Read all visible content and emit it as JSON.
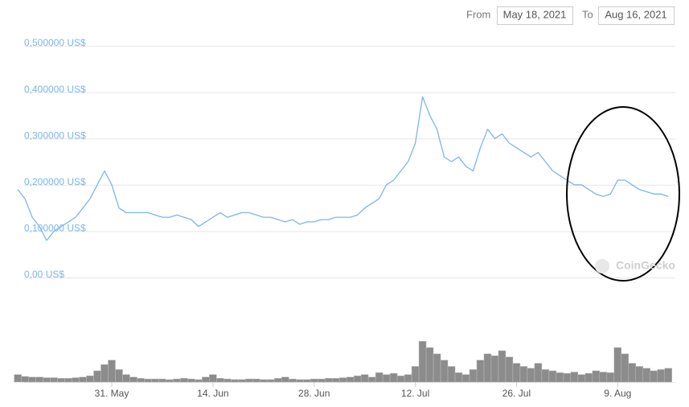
{
  "controls": {
    "from_label": "From",
    "from_date": "May 18, 2021",
    "to_label": "To",
    "to_date": "Aug 16, 2021"
  },
  "watermark": "CoinGecko",
  "chart_data": {
    "type": "line",
    "categories": [
      null,
      null,
      null,
      null,
      null,
      null,
      null,
      null,
      null,
      null,
      null,
      null,
      null,
      "31. May",
      null,
      null,
      null,
      null,
      null,
      null,
      null,
      null,
      null,
      null,
      null,
      null,
      null,
      "14. Jun",
      null,
      null,
      null,
      null,
      null,
      null,
      null,
      null,
      null,
      null,
      null,
      null,
      null,
      "28. Jun",
      null,
      null,
      null,
      null,
      null,
      null,
      null,
      null,
      null,
      null,
      null,
      null,
      null,
      "12. Jul",
      null,
      null,
      null,
      null,
      null,
      null,
      null,
      null,
      null,
      null,
      null,
      null,
      null,
      "26. Jul",
      null,
      null,
      null,
      null,
      null,
      null,
      null,
      null,
      null,
      null,
      null,
      null,
      null,
      "9. Aug",
      null,
      null,
      null,
      null,
      null,
      null,
      null
    ],
    "series": [
      {
        "name": "Price",
        "color": "#7cb5ec",
        "values": [
          0.19,
          0.17,
          0.13,
          0.11,
          0.08,
          0.1,
          0.11,
          0.12,
          0.13,
          0.15,
          0.17,
          0.2,
          0.23,
          0.2,
          0.15,
          0.14,
          0.14,
          0.14,
          0.14,
          0.135,
          0.13,
          0.13,
          0.135,
          0.13,
          0.125,
          0.11,
          0.12,
          0.13,
          0.14,
          0.13,
          0.135,
          0.14,
          0.14,
          0.135,
          0.13,
          0.13,
          0.125,
          0.12,
          0.125,
          0.115,
          0.12,
          0.12,
          0.125,
          0.125,
          0.13,
          0.13,
          0.13,
          0.135,
          0.15,
          0.16,
          0.17,
          0.2,
          0.21,
          0.23,
          0.25,
          0.29,
          0.39,
          0.35,
          0.32,
          0.26,
          0.25,
          0.26,
          0.24,
          0.23,
          0.28,
          0.32,
          0.3,
          0.31,
          0.29,
          0.28,
          0.27,
          0.26,
          0.27,
          0.25,
          0.23,
          0.22,
          0.21,
          0.2,
          0.2,
          0.19,
          0.18,
          0.175,
          0.18,
          0.21,
          0.21,
          0.2,
          0.19,
          0.185,
          0.18,
          0.18,
          0.175
        ]
      },
      {
        "name": "Volume",
        "color": "#8c8c8c",
        "axis": "y2",
        "values": [
          12,
          9,
          8,
          8,
          7,
          7,
          6,
          6,
          7,
          8,
          10,
          18,
          28,
          35,
          20,
          12,
          8,
          6,
          5,
          5,
          5,
          4,
          5,
          6,
          5,
          4,
          8,
          12,
          6,
          5,
          4,
          4,
          5,
          5,
          4,
          4,
          6,
          8,
          5,
          4,
          4,
          5,
          5,
          6,
          6,
          7,
          8,
          10,
          12,
          8,
          15,
          12,
          14,
          10,
          12,
          25,
          65,
          55,
          45,
          35,
          25,
          15,
          12,
          20,
          35,
          45,
          42,
          50,
          40,
          30,
          25,
          22,
          30,
          20,
          18,
          15,
          14,
          16,
          12,
          14,
          18,
          16,
          15,
          55,
          45,
          30,
          25,
          22,
          18,
          20,
          22
        ]
      }
    ],
    "ylim": [
      0,
      0.5
    ],
    "yticks": [
      {
        "value": 0,
        "label": "0,00 US$"
      },
      {
        "value": 0.1,
        "label": "0,100000 US$"
      },
      {
        "value": 0.2,
        "label": "0,200000 US$"
      },
      {
        "value": 0.3,
        "label": "0,300000 US$"
      },
      {
        "value": 0.4,
        "label": "0,400000 US$"
      },
      {
        "value": 0.5,
        "label": "0,500000 US$"
      }
    ],
    "y2lim": [
      0,
      100
    ],
    "grid": true
  }
}
